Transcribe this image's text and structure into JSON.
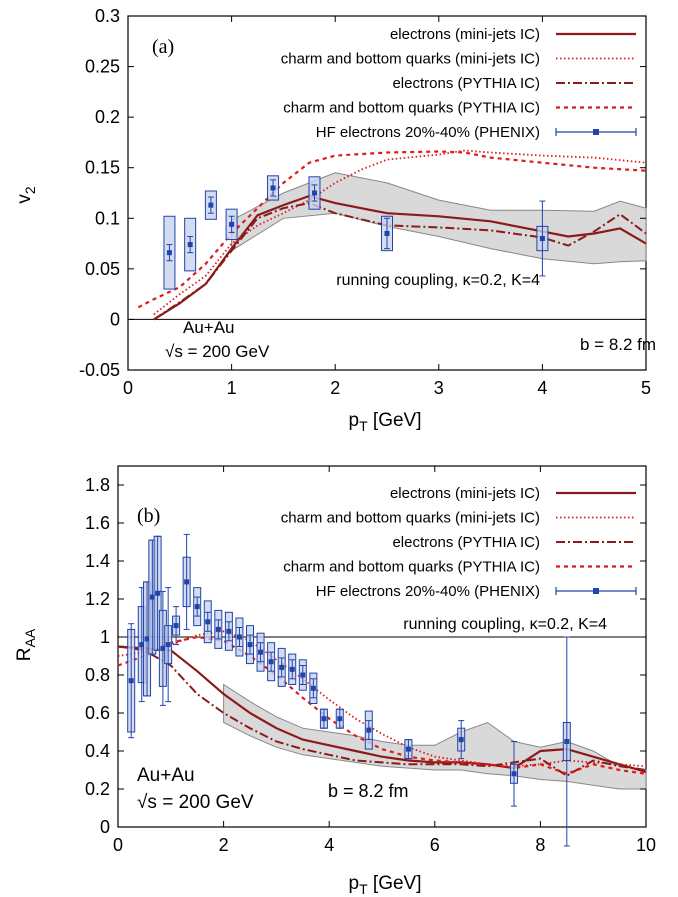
{
  "chart_data": [
    {
      "type": "line",
      "panel_label": "(a)",
      "xlabel": "p",
      "xlabel_sub": "T",
      "xlabel_suffix": " [GeV]",
      "ylabel": "v",
      "ylabel_sub": "2",
      "xlim": [
        0,
        5
      ],
      "ylim": [
        -0.05,
        0.3
      ],
      "xticks": [
        0,
        1,
        2,
        3,
        4,
        5
      ],
      "yticks": [
        -0.05,
        0,
        0.05,
        0.1,
        0.15,
        0.2,
        0.25,
        0.3
      ],
      "xtick_labels": [
        "0",
        "1",
        "2",
        "3",
        "4",
        "5"
      ],
      "ytick_labels": [
        "-0.05",
        "0",
        "0.05",
        "0.1",
        "0.15",
        "0.2",
        "0.25",
        "0.3"
      ],
      "annotations": {
        "coupling": "running coupling, κ=0.2, K=4",
        "system": "Au+Au",
        "energy": "√s = 200 GeV",
        "impact": "b = 8.2 fm"
      },
      "legend_position": "top-right",
      "series": [
        {
          "name": "electrons (mini-jets IC)",
          "style": "solid",
          "color": "#8b1a1a",
          "x": [
            0.25,
            0.5,
            0.75,
            1.0,
            1.25,
            1.5,
            1.75,
            2.0,
            2.5,
            3.0,
            3.5,
            4.0,
            4.25,
            4.5,
            4.75,
            5.0
          ],
          "y": [
            0.0,
            0.016,
            0.035,
            0.07,
            0.103,
            0.113,
            0.122,
            0.115,
            0.105,
            0.102,
            0.097,
            0.087,
            0.082,
            0.085,
            0.09,
            0.075
          ]
        },
        {
          "name": "charm and bottom quarks (mini-jets IC)",
          "style": "dotted",
          "color": "#e01a1a",
          "x": [
            0.25,
            0.5,
            0.75,
            1.0,
            1.25,
            1.5,
            1.75,
            2.0,
            2.25,
            2.5,
            3.0,
            3.25,
            3.5,
            4.0,
            4.5,
            5.0
          ],
          "y": [
            0.005,
            0.025,
            0.043,
            0.075,
            0.093,
            0.105,
            0.118,
            0.135,
            0.148,
            0.158,
            0.163,
            0.167,
            0.165,
            0.162,
            0.16,
            0.155
          ]
        },
        {
          "name": "electrons (PYTHIA IC)",
          "style": "dashdot",
          "color": "#8b1a1a",
          "x": [
            0.25,
            0.5,
            0.75,
            1.0,
            1.25,
            1.5,
            1.75,
            2.0,
            2.5,
            3.0,
            3.5,
            4.0,
            4.25,
            4.5,
            4.75,
            5.0
          ],
          "y": [
            0.0,
            0.017,
            0.035,
            0.068,
            0.1,
            0.11,
            0.115,
            0.105,
            0.093,
            0.091,
            0.088,
            0.081,
            0.073,
            0.087,
            0.104,
            0.085
          ]
        },
        {
          "name": "charm and bottom quarks (PYTHIA IC)",
          "style": "dashed",
          "color": "#e01a1a",
          "x": [
            0.1,
            0.25,
            0.5,
            0.75,
            1.0,
            1.25,
            1.5,
            1.75,
            2.0,
            2.5,
            3.0,
            3.25,
            3.5,
            4.0,
            4.5,
            5.0
          ],
          "y": [
            0.012,
            0.02,
            0.032,
            0.055,
            0.085,
            0.11,
            0.135,
            0.155,
            0.162,
            0.165,
            0.166,
            0.165,
            0.16,
            0.155,
            0.15,
            0.147
          ]
        },
        {
          "name": "HF electrons 20%-40% (PHENIX)",
          "style": "points",
          "color": "#2244aa",
          "x": [
            0.4,
            0.6,
            0.8,
            1.0,
            1.4,
            1.8,
            2.5,
            4.0
          ],
          "y": [
            0.066,
            0.074,
            0.113,
            0.094,
            0.13,
            0.125,
            0.085,
            0.08
          ],
          "err": [
            0.008,
            0.008,
            0.008,
            0.008,
            0.008,
            0.008,
            0.015,
            0.037
          ],
          "sys": [
            0.036,
            0.026,
            0.014,
            0.015,
            0.012,
            0.016,
            0.017,
            0.012
          ]
        }
      ],
      "band": {
        "x": [
          1.0,
          1.5,
          2.0,
          2.5,
          3.0,
          3.5,
          4.0,
          4.5,
          4.75,
          5.0
        ],
        "lo": [
          0.068,
          0.1,
          0.105,
          0.092,
          0.082,
          0.07,
          0.06,
          0.055,
          0.057,
          0.058
        ],
        "hi": [
          0.098,
          0.125,
          0.145,
          0.135,
          0.118,
          0.108,
          0.108,
          0.107,
          0.117,
          0.11
        ]
      }
    },
    {
      "type": "line",
      "panel_label": "(b)",
      "xlabel": "p",
      "xlabel_sub": "T",
      "xlabel_suffix": " [GeV]",
      "ylabel": "R",
      "ylabel_sub": "AA",
      "xlim": [
        0,
        10
      ],
      "ylim": [
        0,
        1.9
      ],
      "xticks": [
        0,
        2,
        4,
        6,
        8,
        10
      ],
      "yticks": [
        0,
        0.2,
        0.4,
        0.6,
        0.8,
        1,
        1.2,
        1.4,
        1.6,
        1.8
      ],
      "xtick_labels": [
        "0",
        "2",
        "4",
        "6",
        "8",
        "10"
      ],
      "ytick_labels": [
        "0",
        "0.2",
        "0.4",
        "0.6",
        "0.8",
        "1",
        "1.2",
        "1.4",
        "1.6",
        "1.8"
      ],
      "annotations": {
        "coupling": "running coupling, κ=0.2, K=4",
        "system": "Au+Au",
        "energy": "√s = 200 GeV",
        "impact": "b = 8.2 fm"
      },
      "legend_position": "top-right",
      "series": [
        {
          "name": "electrons (mini-jets IC)",
          "style": "solid",
          "color": "#8b1a1a",
          "x": [
            0,
            0.5,
            1.0,
            1.5,
            2.0,
            2.5,
            3.0,
            3.5,
            4.0,
            4.5,
            5.0,
            5.5,
            6.0,
            6.5,
            7.0,
            7.5,
            8.0,
            8.5,
            9.0,
            9.5,
            10.0
          ],
          "y": [
            0.95,
            0.94,
            0.93,
            0.82,
            0.7,
            0.6,
            0.52,
            0.46,
            0.43,
            0.4,
            0.37,
            0.35,
            0.34,
            0.34,
            0.33,
            0.31,
            0.4,
            0.41,
            0.37,
            0.33,
            0.29
          ]
        },
        {
          "name": "charm and bottom quarks (mini-jets IC)",
          "style": "dotted",
          "color": "#e01a1a",
          "x": [
            0,
            0.5,
            1.0,
            1.5,
            2.0,
            2.5,
            3.0,
            3.5,
            4.0,
            4.5,
            5.0,
            5.5,
            6.0,
            6.5,
            7.0,
            7.5,
            8.0,
            8.5,
            9.0,
            9.5,
            10.0
          ],
          "y": [
            0.9,
            0.92,
            0.96,
            1.01,
            1.03,
            0.98,
            0.88,
            0.78,
            0.67,
            0.57,
            0.49,
            0.42,
            0.37,
            0.35,
            0.33,
            0.32,
            0.33,
            0.35,
            0.34,
            0.33,
            0.32
          ]
        },
        {
          "name": "electrons (PYTHIA IC)",
          "style": "dashdot",
          "color": "#8b1a1a",
          "x": [
            0,
            0.5,
            1.0,
            1.5,
            2.0,
            2.5,
            3.0,
            3.5,
            4.0,
            4.5,
            5.0,
            5.5,
            6.0,
            6.5,
            7.0,
            7.5,
            8.0,
            8.5,
            9.0,
            9.5,
            10.0
          ],
          "y": [
            0.95,
            0.93,
            0.85,
            0.7,
            0.6,
            0.52,
            0.45,
            0.41,
            0.38,
            0.35,
            0.34,
            0.33,
            0.33,
            0.33,
            0.32,
            0.34,
            0.36,
            0.27,
            0.35,
            0.32,
            0.3
          ]
        },
        {
          "name": "charm and bottom quarks (PYTHIA IC)",
          "style": "dashed",
          "color": "#e01a1a",
          "x": [
            0,
            0.5,
            1.0,
            1.5,
            2.0,
            2.5,
            3.0,
            3.5,
            4.0,
            4.5,
            5.0,
            5.5,
            6.0,
            6.5,
            7.0,
            7.5,
            8.0,
            8.5,
            9.0,
            9.5,
            10.0
          ],
          "y": [
            0.85,
            0.9,
            0.97,
            1.0,
            0.98,
            0.9,
            0.8,
            0.68,
            0.57,
            0.48,
            0.41,
            0.37,
            0.35,
            0.34,
            0.33,
            0.31,
            0.33,
            0.28,
            0.33,
            0.3,
            0.28
          ]
        },
        {
          "name": "HF electrons 20%-40% (PHENIX)",
          "style": "points",
          "color": "#2244aa",
          "x": [
            0.25,
            0.45,
            0.55,
            0.65,
            0.75,
            0.85,
            0.95,
            1.1,
            1.3,
            1.5,
            1.7,
            1.9,
            2.1,
            2.3,
            2.5,
            2.7,
            2.9,
            3.1,
            3.3,
            3.5,
            3.7,
            3.9,
            4.2,
            4.75,
            5.5,
            6.5,
            7.5,
            8.5
          ],
          "y": [
            0.77,
            0.96,
            0.99,
            1.21,
            1.23,
            0.94,
            0.96,
            1.06,
            1.29,
            1.16,
            1.08,
            1.04,
            1.03,
            1.0,
            0.96,
            0.92,
            0.87,
            0.84,
            0.83,
            0.8,
            0.73,
            0.57,
            0.57,
            0.51,
            0.41,
            0.46,
            0.28,
            0.45
          ],
          "err": [
            0.3,
            0.3,
            0.3,
            0.3,
            0.3,
            0.3,
            0.3,
            0.1,
            0.25,
            0.05,
            0.05,
            0.05,
            0.05,
            0.05,
            0.05,
            0.05,
            0.05,
            0.05,
            0.05,
            0.05,
            0.05,
            0.05,
            0.05,
            0.05,
            0.05,
            0.1,
            0.17,
            0.55
          ],
          "sys": [
            0.27,
            0.2,
            0.3,
            0.3,
            0.3,
            0.2,
            0.1,
            0.05,
            0.13,
            0.1,
            0.11,
            0.1,
            0.1,
            0.1,
            0.1,
            0.1,
            0.1,
            0.1,
            0.08,
            0.08,
            0.08,
            0.05,
            0.05,
            0.1,
            0.05,
            0.06,
            0.05,
            0.1
          ]
        }
      ],
      "band": {
        "x": [
          2.0,
          2.5,
          3.0,
          3.5,
          4.0,
          4.5,
          5.0,
          5.5,
          6.0,
          6.5,
          7.0,
          7.5,
          8.0,
          8.5,
          9.0,
          9.5,
          10.0
        ],
        "lo": [
          0.55,
          0.48,
          0.42,
          0.38,
          0.36,
          0.34,
          0.32,
          0.31,
          0.3,
          0.3,
          0.28,
          0.27,
          0.25,
          0.24,
          0.22,
          0.2,
          0.2
        ],
        "hi": [
          0.75,
          0.66,
          0.58,
          0.52,
          0.5,
          0.48,
          0.45,
          0.43,
          0.43,
          0.5,
          0.55,
          0.45,
          0.42,
          0.45,
          0.4,
          0.32,
          0.3
        ]
      }
    }
  ],
  "colors": {
    "band": "#d9d9d9",
    "band_edge": "#888888",
    "data": "#2244aa",
    "sys_box": "#c8d3ec"
  }
}
